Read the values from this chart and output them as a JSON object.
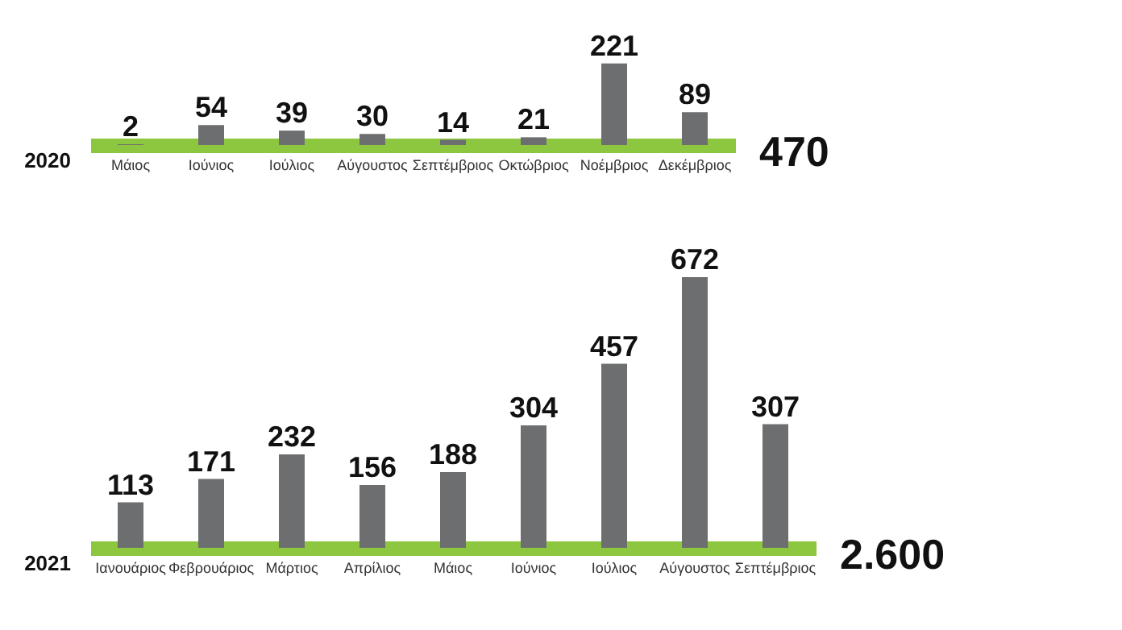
{
  "chart_data": [
    {
      "type": "bar",
      "title": "2020",
      "categories": [
        "Μάιος",
        "Ιούνιος",
        "Ιούλιος",
        "Αύγουστος",
        "Σεπτέμβριος",
        "Οκτώβριος",
        "Νοέμβριος",
        "Δεκέμβριος"
      ],
      "values": [
        2,
        54,
        39,
        30,
        14,
        21,
        221,
        89
      ],
      "color": "#6d6e70",
      "data_labels": true,
      "annotations": [
        "470"
      ]
    },
    {
      "type": "bar",
      "title": "2021",
      "categories": [
        "Ιανουάριος",
        "Φεβρουάριος",
        "Μάρτιος",
        "Απρίλιος",
        "Μάιος",
        "Ιούνιος",
        "Ιούλιος",
        "Αύγουστος",
        "Σεπτέμβριος"
      ],
      "values": [
        113,
        171,
        232,
        156,
        188,
        304,
        457,
        672,
        307
      ],
      "color": "#6d6e70",
      "data_labels": true,
      "annotations": [
        "2.600"
      ]
    }
  ]
}
